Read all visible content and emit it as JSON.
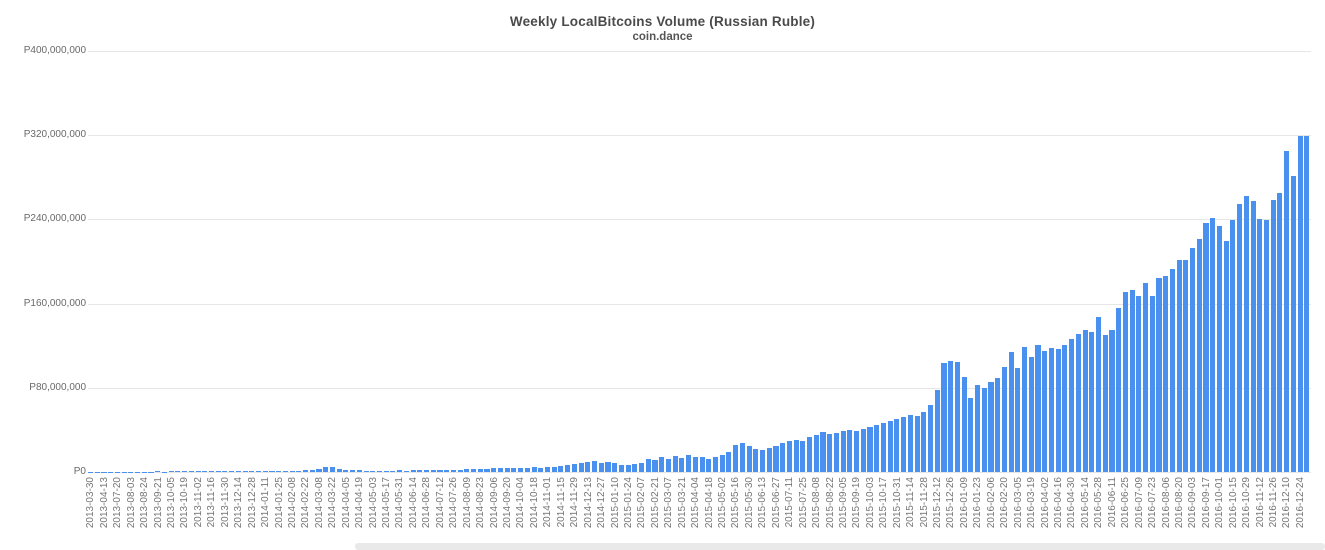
{
  "chart_data": {
    "type": "bar",
    "title": "Weekly LocalBitcoins Volume (Russian Ruble)",
    "subtitle": "coin.dance",
    "currency_prefix": "P",
    "grid": true,
    "legend_position": "none",
    "ylim": [
      0,
      400000000
    ],
    "y_tick_values": [
      0,
      80000000,
      160000000,
      240000000,
      320000000,
      400000000
    ],
    "y_tick_labels": [
      "P0",
      "P80,000,000",
      "P160,000,000",
      "P240,000,000",
      "P320,000,000",
      "P400,000,000"
    ],
    "bar_color": "#4a90ee",
    "label_every_n_bars": 2,
    "x_tick_labels": [
      "2013-03-30",
      "2013-04-13",
      "2013-07-20",
      "2013-08-03",
      "2013-08-24",
      "2013-09-21",
      "2013-10-05",
      "2013-10-19",
      "2013-11-02",
      "2013-11-16",
      "2013-11-30",
      "2013-12-14",
      "2013-12-28",
      "2014-01-11",
      "2014-01-25",
      "2014-02-08",
      "2014-02-22",
      "2014-03-08",
      "2014-03-22",
      "2014-04-05",
      "2014-04-19",
      "2014-05-03",
      "2014-05-17",
      "2014-05-31",
      "2014-06-14",
      "2014-06-28",
      "2014-07-12",
      "2014-07-26",
      "2014-08-09",
      "2014-08-23",
      "2014-09-06",
      "2014-09-20",
      "2014-10-04",
      "2014-10-18",
      "2014-11-01",
      "2014-11-15",
      "2014-11-29",
      "2014-12-13",
      "2014-12-27",
      "2015-01-10",
      "2015-01-24",
      "2015-02-07",
      "2015-02-21",
      "2015-03-07",
      "2015-03-21",
      "2015-04-04",
      "2015-04-18",
      "2015-05-02",
      "2015-05-16",
      "2015-05-30",
      "2015-06-13",
      "2015-06-27",
      "2015-07-11",
      "2015-07-25",
      "2015-08-08",
      "2015-08-22",
      "2015-09-05",
      "2015-09-19",
      "2015-10-03",
      "2015-10-17",
      "2015-10-31",
      "2015-11-14",
      "2015-11-28",
      "2015-12-12",
      "2015-12-26",
      "2016-01-09",
      "2016-01-23",
      "2016-02-06",
      "2016-02-20",
      "2016-03-05",
      "2016-03-19",
      "2016-04-02",
      "2016-04-16",
      "2016-04-30",
      "2016-05-14",
      "2016-05-28",
      "2016-06-11",
      "2016-06-25",
      "2016-07-09",
      "2016-07-23",
      "2016-08-06",
      "2016-08-20",
      "2016-09-03",
      "2016-09-17",
      "2016-10-01",
      "2016-10-15",
      "2016-10-29",
      "2016-11-12",
      "2016-11-26",
      "2016-12-10",
      "2016-12-24"
    ],
    "values": [
      300000,
      400000,
      300000,
      200000,
      300000,
      300000,
      400000,
      300000,
      400000,
      400000,
      500000,
      400000,
      500000,
      500000,
      600000,
      500000,
      600000,
      700000,
      600000,
      700000,
      800000,
      900000,
      800000,
      1000000,
      900000,
      1000000,
      1100000,
      1000000,
      1200000,
      1100000,
      1300000,
      1400000,
      1500000,
      2200000,
      3200000,
      4800000,
      4400000,
      2600000,
      2000000,
      1800000,
      1600000,
      1400000,
      1300000,
      1300000,
      1400000,
      1300000,
      1500000,
      1400000,
      1600000,
      1500000,
      1700000,
      1600000,
      1800000,
      1900000,
      2100000,
      2300000,
      2600000,
      2800000,
      3000000,
      3200000,
      3400000,
      3600000,
      3800000,
      4000000,
      3800000,
      4000000,
      4400000,
      4200000,
      4800000,
      5200000,
      5800000,
      6600000,
      7400000,
      8200000,
      9200000,
      10100000,
      8900000,
      9500000,
      8200000,
      7000000,
      6300000,
      7600000,
      8900000,
      12700000,
      11400000,
      14600000,
      12700000,
      15200000,
      13300000,
      15900000,
      14600000,
      13900000,
      12700000,
      14600000,
      16500000,
      19000000,
      25700000,
      27200000,
      24900000,
      22300000,
      21200000,
      22600000,
      24800000,
      27100000,
      29500000,
      30200000,
      29900000,
      32800000,
      35100000,
      38200000,
      36000000,
      36900000,
      38500000,
      40100000,
      38900000,
      41300000,
      42600000,
      44200000,
      46100000,
      48000000,
      50200000,
      52400000,
      54100000,
      52800000,
      57300000,
      63400000,
      78200000,
      103900000,
      105200000,
      104900000,
      90600000,
      70100000,
      82700000,
      79600000,
      85900000,
      89100000,
      100200000,
      114400000,
      98600000,
      119200000,
      109700000,
      120800000,
      115400000,
      117600000,
      116700000,
      120800000,
      126200000,
      131200000,
      135000000,
      133400000,
      147100000,
      130300000,
      135000000,
      155700000,
      170600000,
      173100000,
      166800000,
      179400000,
      167400000,
      184200000,
      185800000,
      192800000,
      201000000,
      201600000,
      212700000,
      221300000,
      236500000,
      241200000,
      233300000,
      219700000,
      239700000,
      254800000,
      261900000,
      257100000,
      240100000,
      239800000,
      258700000,
      265000000,
      304600000,
      280900000,
      318900000,
      318900000
    ]
  }
}
